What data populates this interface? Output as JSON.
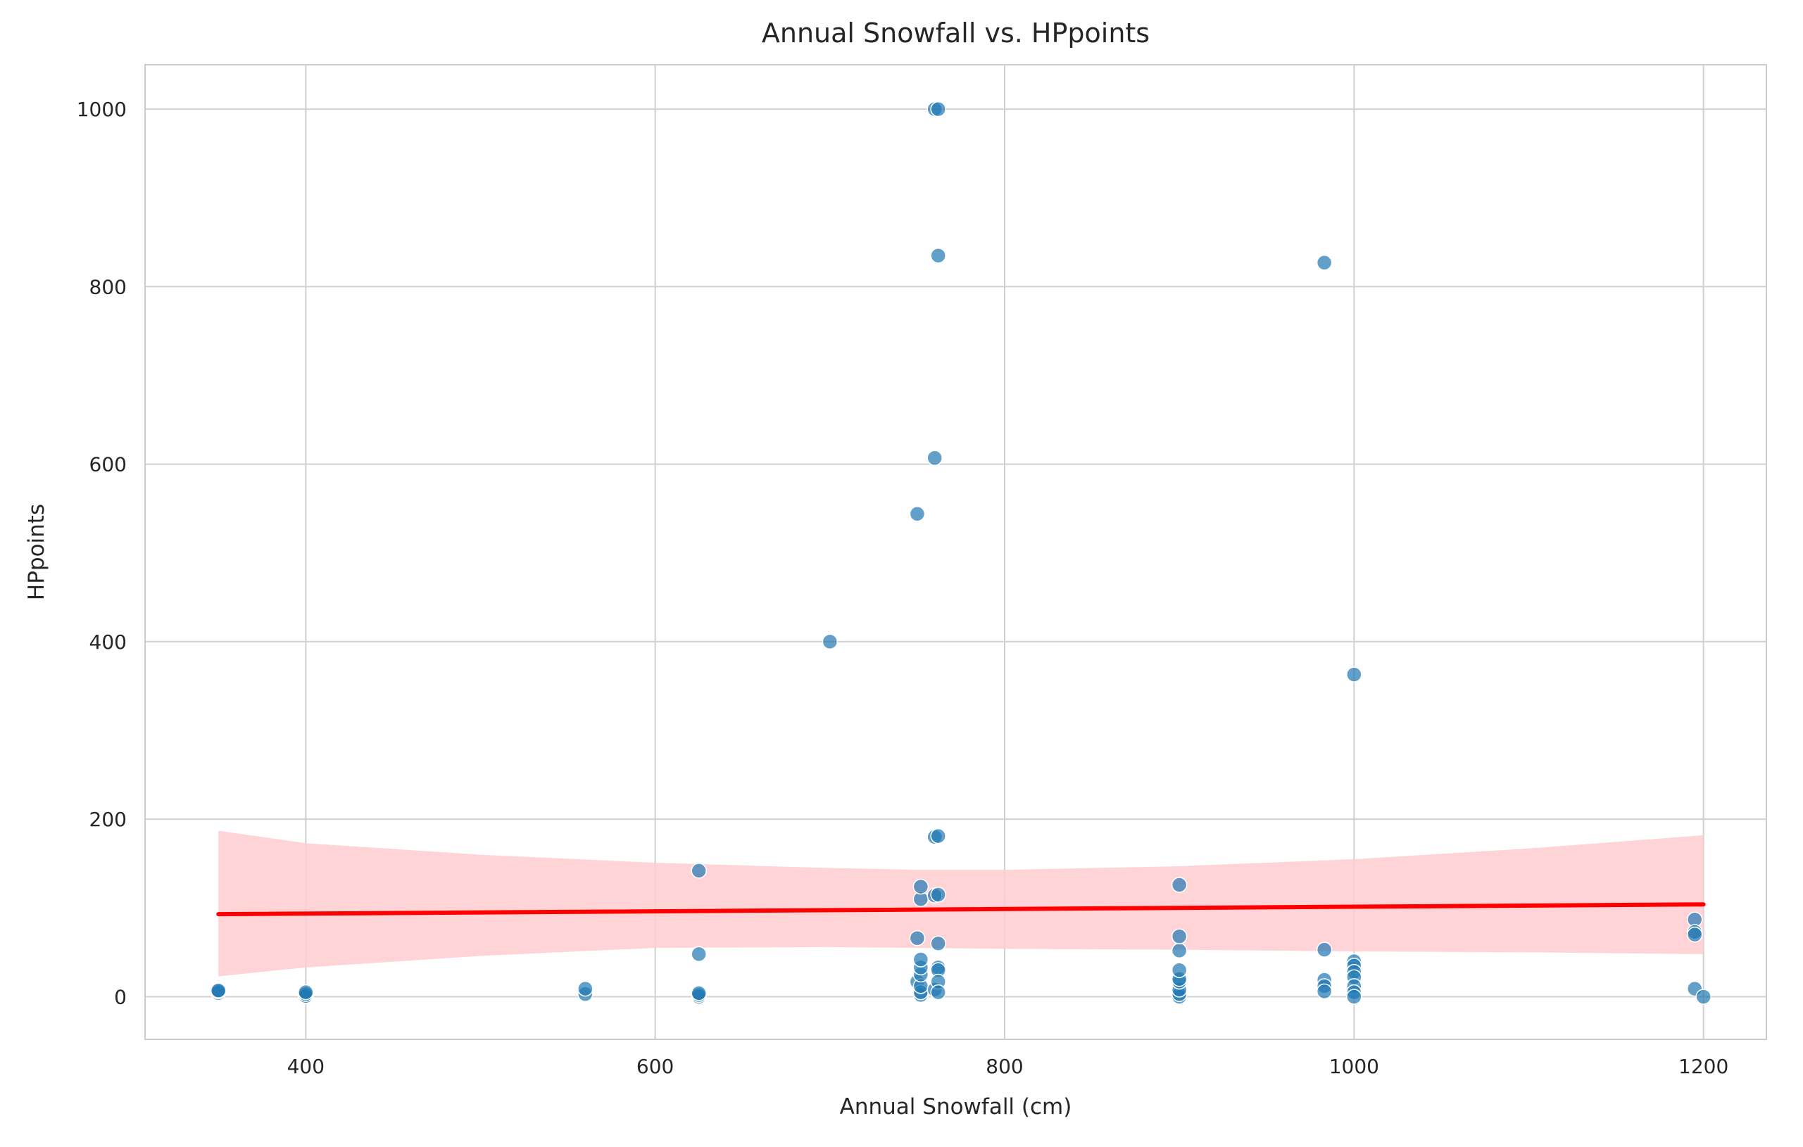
{
  "chart_data": {
    "type": "scatter",
    "title": "Annual Snowfall vs. HPpoints",
    "xlabel": "Annual Snowfall (cm)",
    "ylabel": "HPpoints",
    "xlim": [
      308,
      1236
    ],
    "ylim": [
      -48,
      1050
    ],
    "xticks": [
      400,
      600,
      800,
      1000,
      1200
    ],
    "yticks": [
      0,
      200,
      400,
      600,
      800,
      1000
    ],
    "grid": true,
    "legend": "none",
    "colors": {
      "points": "#1f77b4",
      "regression_line": "#ff0000",
      "confidence_band": "#ffcccf",
      "grid": "#d0d0d0",
      "axes_edge": "#cccccc"
    },
    "points": [
      {
        "x": 350,
        "y": 4
      },
      {
        "x": 350,
        "y": 6
      },
      {
        "x": 350,
        "y": 7
      },
      {
        "x": 400,
        "y": 0
      },
      {
        "x": 400,
        "y": 1
      },
      {
        "x": 400,
        "y": 3
      },
      {
        "x": 400,
        "y": 5
      },
      {
        "x": 560,
        "y": 3
      },
      {
        "x": 560,
        "y": 9
      },
      {
        "x": 625,
        "y": 0
      },
      {
        "x": 625,
        "y": 2
      },
      {
        "x": 625,
        "y": 4
      },
      {
        "x": 625,
        "y": 48
      },
      {
        "x": 625,
        "y": 142
      },
      {
        "x": 700,
        "y": 400
      },
      {
        "x": 750,
        "y": 17
      },
      {
        "x": 750,
        "y": 66
      },
      {
        "x": 750,
        "y": 544
      },
      {
        "x": 752,
        "y": 2
      },
      {
        "x": 752,
        "y": 5
      },
      {
        "x": 752,
        "y": 12
      },
      {
        "x": 752,
        "y": 25
      },
      {
        "x": 752,
        "y": 33
      },
      {
        "x": 752,
        "y": 42
      },
      {
        "x": 752,
        "y": 110
      },
      {
        "x": 752,
        "y": 124
      },
      {
        "x": 760,
        "y": 1000
      },
      {
        "x": 760,
        "y": 607
      },
      {
        "x": 760,
        "y": 180
      },
      {
        "x": 760,
        "y": 114
      },
      {
        "x": 760,
        "y": 8
      },
      {
        "x": 762,
        "y": 1000
      },
      {
        "x": 762,
        "y": 835
      },
      {
        "x": 762,
        "y": 181
      },
      {
        "x": 762,
        "y": 115
      },
      {
        "x": 762,
        "y": 60
      },
      {
        "x": 762,
        "y": 33
      },
      {
        "x": 762,
        "y": 30
      },
      {
        "x": 762,
        "y": 17
      },
      {
        "x": 762,
        "y": 5
      },
      {
        "x": 900,
        "y": 0
      },
      {
        "x": 900,
        "y": 3
      },
      {
        "x": 900,
        "y": 8
      },
      {
        "x": 900,
        "y": 17
      },
      {
        "x": 900,
        "y": 20
      },
      {
        "x": 900,
        "y": 30
      },
      {
        "x": 900,
        "y": 52
      },
      {
        "x": 900,
        "y": 68
      },
      {
        "x": 900,
        "y": 126
      },
      {
        "x": 983,
        "y": 827
      },
      {
        "x": 983,
        "y": 53
      },
      {
        "x": 983,
        "y": 19
      },
      {
        "x": 983,
        "y": 12
      },
      {
        "x": 983,
        "y": 6
      },
      {
        "x": 1000,
        "y": 363
      },
      {
        "x": 1000,
        "y": 40
      },
      {
        "x": 1000,
        "y": 35
      },
      {
        "x": 1000,
        "y": 28
      },
      {
        "x": 1000,
        "y": 22
      },
      {
        "x": 1000,
        "y": 12
      },
      {
        "x": 1000,
        "y": 5
      },
      {
        "x": 1000,
        "y": 0
      },
      {
        "x": 1195,
        "y": 87
      },
      {
        "x": 1195,
        "y": 73
      },
      {
        "x": 1195,
        "y": 70
      },
      {
        "x": 1195,
        "y": 9
      },
      {
        "x": 1200,
        "y": 0
      }
    ],
    "regression": {
      "x": [
        350,
        1200
      ],
      "y": [
        93,
        104
      ]
    },
    "confidence_band": {
      "x": [
        350,
        400,
        500,
        600,
        700,
        750,
        800,
        900,
        1000,
        1100,
        1200
      ],
      "upper": [
        187,
        173,
        160,
        151,
        145,
        143,
        143,
        147,
        155,
        167,
        182
      ],
      "lower": [
        23,
        33,
        46,
        55,
        56,
        55,
        54,
        53,
        51,
        50,
        48
      ]
    }
  }
}
